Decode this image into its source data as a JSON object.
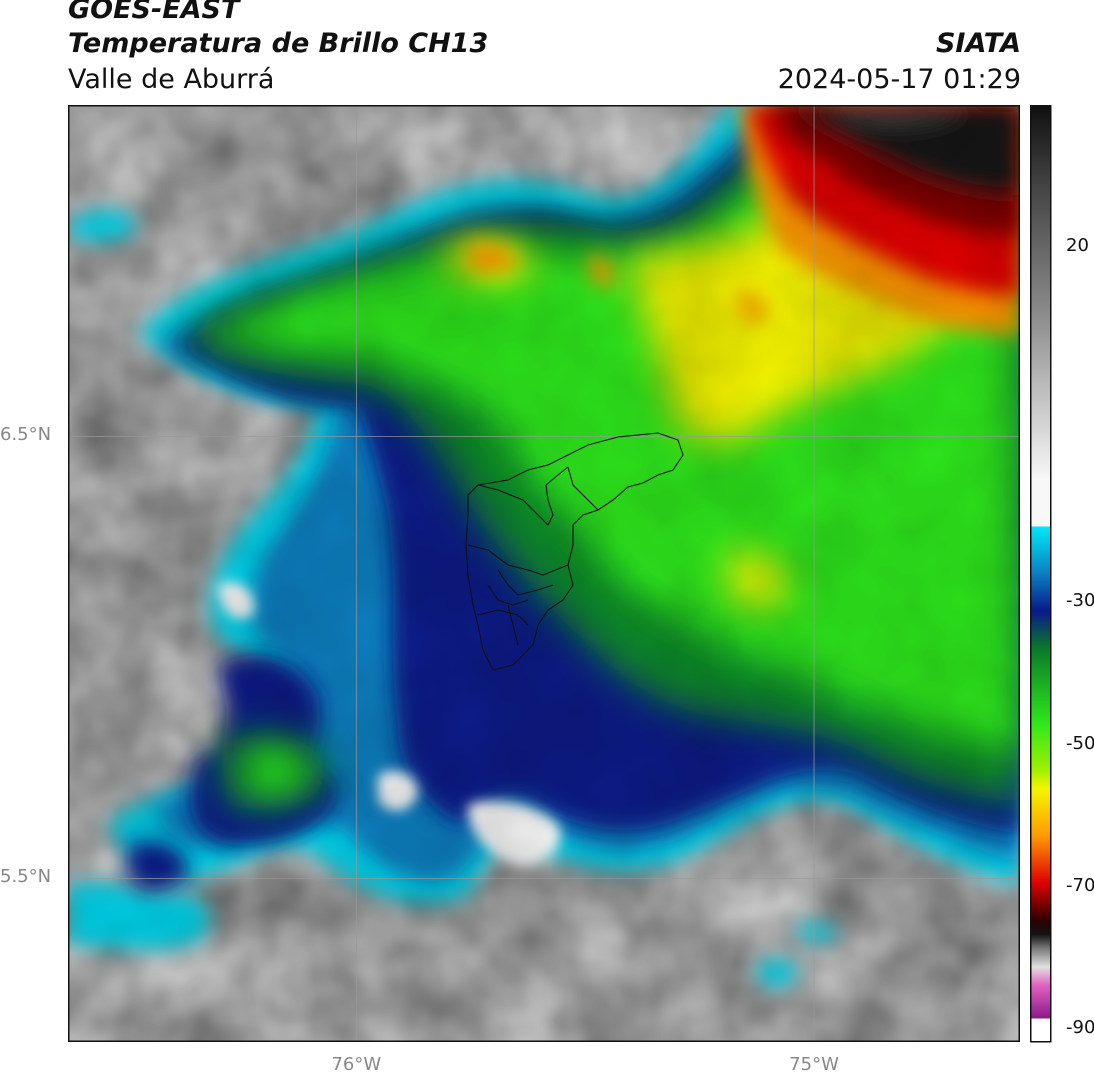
{
  "header": {
    "satellite": "GOES-EAST",
    "product": "Temperatura de Brillo CH13",
    "region": "Valle de Aburrá",
    "organization": "SIATA",
    "timestamp": "2024-05-17 01:29"
  },
  "axes": {
    "x_ticks": [
      {
        "label": "76°W",
        "lon": -76.0
      },
      {
        "label": "75°W",
        "lon": -75.0
      }
    ],
    "y_ticks": [
      {
        "label": "6.5°N",
        "lat": 6.5
      },
      {
        "label": "5.5°N",
        "lat": 5.5
      }
    ],
    "lon_range": [
      -76.63,
      -74.55
    ],
    "lat_range": [
      5.13,
      7.25
    ],
    "grid": true
  },
  "colorbar": {
    "ticks": [
      "20",
      "-30",
      "-50",
      "-70",
      "-90"
    ],
    "range_celsius": [
      -92,
      40
    ]
  },
  "colors": {
    "gray_dark": "#3a3a3a",
    "gray_light": "#f0f0f0",
    "cyan": "#00d8f0",
    "blue": "#0a7fc0",
    "navy": "#0a1a8a",
    "dark_green": "#0a8a2a",
    "green": "#2ee81a",
    "yellow": "#f5f500",
    "orange": "#ff9a00",
    "red": "#e00000",
    "black": "#101010",
    "magenta": "#d040c0",
    "purple": "#8a1a8a"
  }
}
